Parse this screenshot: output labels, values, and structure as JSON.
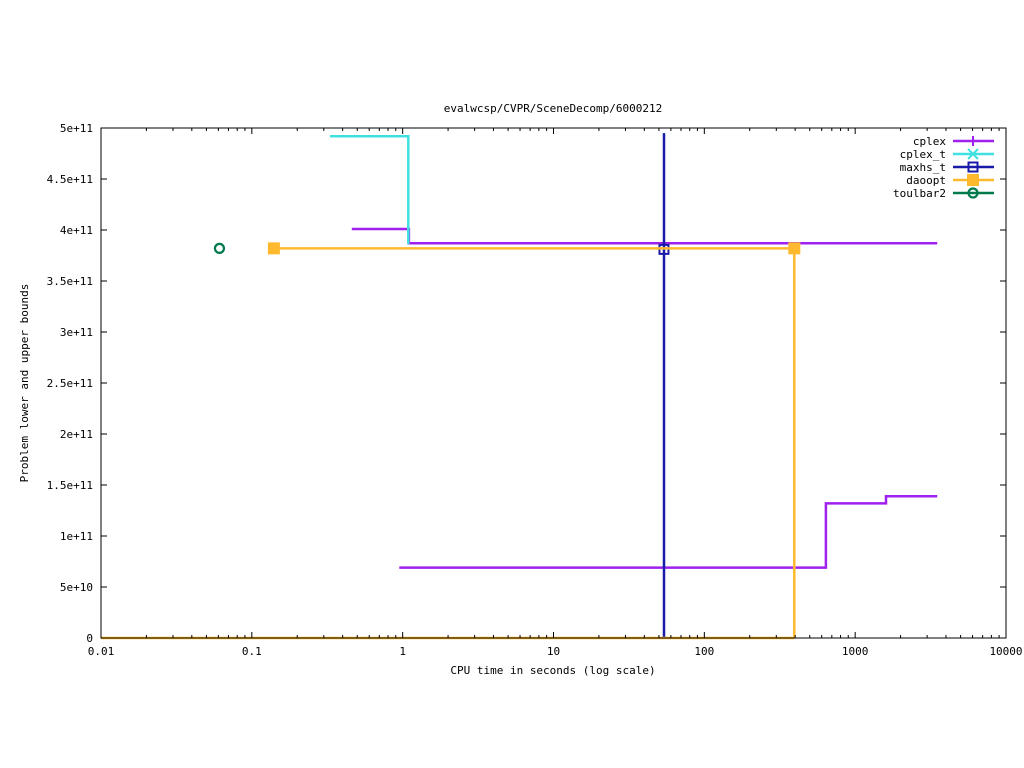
{
  "chart_data": {
    "type": "line",
    "title": "evalwcsp/CVPR/SceneDecomp/6000212",
    "xlabel": "CPU time in seconds (log scale)",
    "ylabel": "Problem lower and upper bounds",
    "x_scale": "log",
    "xlim": [
      0.01,
      10000
    ],
    "ylim": [
      0,
      500000000000
    ],
    "x_ticks": [
      {
        "value": 0.01,
        "label": "0.01"
      },
      {
        "value": 0.1,
        "label": "0.1"
      },
      {
        "value": 1,
        "label": "1"
      },
      {
        "value": 10,
        "label": "10"
      },
      {
        "value": 100,
        "label": "100"
      },
      {
        "value": 1000,
        "label": "1000"
      },
      {
        "value": 10000,
        "label": "10000"
      }
    ],
    "y_ticks": [
      {
        "value": 0,
        "label": "0"
      },
      {
        "value": 50000000000,
        "label": "5e+10"
      },
      {
        "value": 100000000000,
        "label": "1e+11"
      },
      {
        "value": 150000000000,
        "label": "1.5e+11"
      },
      {
        "value": 200000000000,
        "label": "2e+11"
      },
      {
        "value": 250000000000,
        "label": "2.5e+11"
      },
      {
        "value": 300000000000,
        "label": "3e+11"
      },
      {
        "value": 350000000000,
        "label": "3.5e+11"
      },
      {
        "value": 400000000000,
        "label": "4e+11"
      },
      {
        "value": 450000000000,
        "label": "4.5e+11"
      },
      {
        "value": 500000000000,
        "label": "5e+11"
      }
    ],
    "grid": false,
    "legend_position": "top-right",
    "series": [
      {
        "name": "cplex",
        "color": "#a020f0",
        "marker": "plus",
        "lines": [
          [
            [
              0.46,
              401000000000
            ],
            [
              1.1,
              401000000000
            ],
            [
              1.1,
              387000000000
            ],
            [
              3500,
              387000000000
            ]
          ],
          [
            [
              0.95,
              69000000000
            ],
            [
              640,
              69000000000
            ],
            [
              640,
              132000000000
            ],
            [
              1600,
              132000000000
            ],
            [
              1600,
              139000000000
            ],
            [
              3500,
              139000000000
            ]
          ]
        ],
        "markers": []
      },
      {
        "name": "cplex_t",
        "color": "#40e0e0",
        "marker": "x",
        "lines": [
          [
            [
              0.33,
              492000000000
            ],
            [
              1.09,
              492000000000
            ],
            [
              1.09,
              386000000000
            ]
          ]
        ],
        "markers": []
      },
      {
        "name": "maxhs_t",
        "color": "#1a1aa8",
        "marker": "square-open",
        "lines": [
          [
            [
              54,
              495000000000
            ],
            [
              54,
              0
            ]
          ]
        ],
        "markers": [
          [
            54,
            381000000000
          ]
        ]
      },
      {
        "name": "daoopt",
        "color": "#ffb92e",
        "marker": "square-filled",
        "lines": [
          [
            [
              0.14,
              382000000000
            ],
            [
              395,
              382000000000
            ],
            [
              395,
              0
            ]
          ],
          [
            [
              0.01,
              0
            ],
            [
              395,
              0
            ]
          ]
        ],
        "markers": [
          [
            0.14,
            382000000000
          ],
          [
            395,
            382000000000
          ]
        ]
      },
      {
        "name": "toulbar2",
        "color": "#007a4c",
        "marker": "circle-open",
        "lines": [],
        "markers": [
          [
            0.061,
            382000000000
          ]
        ]
      }
    ]
  }
}
